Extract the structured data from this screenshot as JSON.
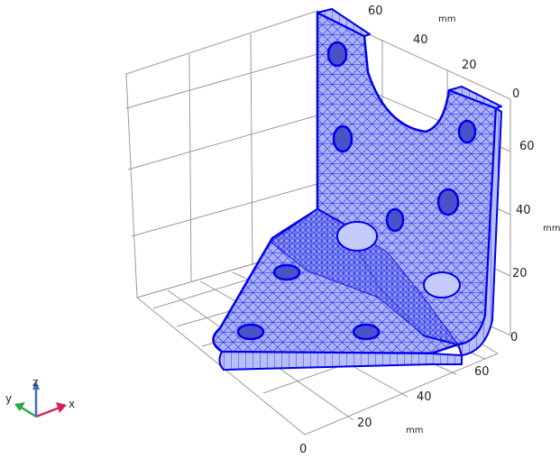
{
  "scene": {
    "axis_label_mm": "mm",
    "y_axis_ticks": [
      "60",
      "40",
      "20",
      "0"
    ],
    "z_axis_ticks": [
      "60",
      "40",
      "20",
      "0"
    ],
    "x_axis_ticks": [
      "60",
      "40",
      "20",
      "0"
    ]
  },
  "triad": {
    "x": "x",
    "y": "y",
    "z": "z"
  },
  "colors": {
    "mesh_fill": "#a9b3f6",
    "mesh_line": "#0000ee",
    "grid": "#9a9a9a",
    "triad_x": "#d0245a",
    "triad_y": "#2aa84a",
    "triad_z": "#3b6fc4"
  }
}
